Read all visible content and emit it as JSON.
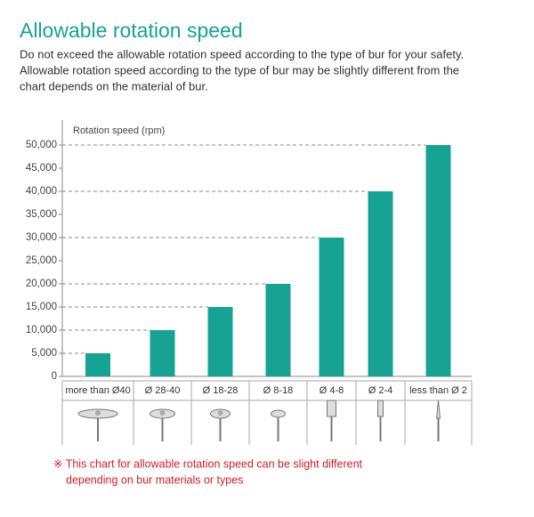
{
  "header": {
    "title": "Allowable rotation speed",
    "lines": [
      "Do not exceed the allowable rotation speed according to the type of bur for your safety.",
      "Allowable rotation speed according to the type of bur may be slightly different from the",
      "chart depends on the material of bur."
    ]
  },
  "chart_data": {
    "type": "bar",
    "y_label": "Rotation speed (rpm)",
    "categories": [
      "more than Ø40",
      "Ø 28-40",
      "Ø 18-28",
      "Ø 8-18",
      "Ø 4-8",
      "Ø 2-4",
      "less than Ø 2"
    ],
    "values": [
      5000,
      10000,
      15000,
      20000,
      30000,
      40000,
      50000
    ],
    "color": "#17a394",
    "ylim": [
      0,
      50000
    ],
    "yticks": [
      0,
      {
        "value": 5000,
        "label": "5,000"
      },
      {
        "value": 10000,
        "label": "10,000"
      },
      {
        "value": 15000,
        "label": "15,000"
      },
      {
        "value": 20000,
        "label": "20,000"
      },
      {
        "value": 25000,
        "label": "25,000"
      },
      {
        "value": 30000,
        "label": "30,000"
      },
      {
        "value": 35000,
        "label": "35,000"
      },
      {
        "value": 40000,
        "label": "40,000"
      },
      {
        "value": 45000,
        "label": "45,000"
      },
      {
        "value": 50000,
        "label": "50,000"
      }
    ]
  },
  "note": [
    "※ This chart for allowable rotation speed can be slight different",
    "depending on bur materials or types"
  ]
}
